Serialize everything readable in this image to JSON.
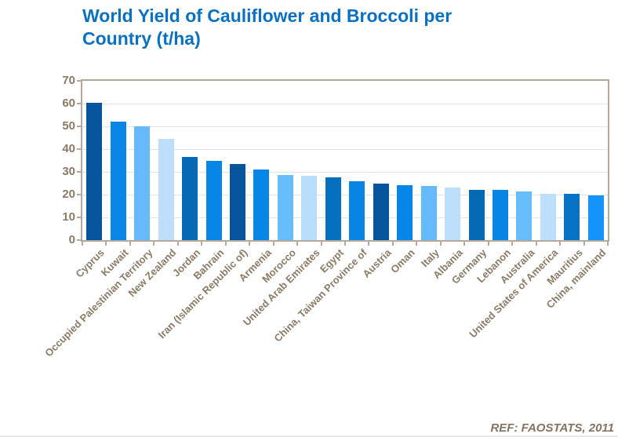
{
  "header": {
    "title_line1": "World Yield of Cauliflower and Broccoli per",
    "title_line2": "Country (t/ha)"
  },
  "colors": {
    "background": "#FFFFFF",
    "title_text": "#0A71C0",
    "axis_frame": "#B5A89C",
    "gridline": "#E7E3DF",
    "axis_text": "#8B7A66",
    "ref_text": "#857262",
    "bottom_rule": "#EAE8E5"
  },
  "chart_data": {
    "type": "bar",
    "title": "World Yield of Cauliflower and Broccoli per Country (t/ha)",
    "annotation": "REF: FAOSTATS, 2011",
    "xlabel": "",
    "ylabel": "",
    "ylim": [
      0,
      70
    ],
    "yticks": [
      0,
      10,
      20,
      30,
      40,
      50,
      60,
      70
    ],
    "grid": true,
    "legend": false,
    "categories": [
      "Cyprus",
      "Kuwait",
      "Occupied Palestinian Territory",
      "New Zealand",
      "Jordan",
      "Bahrain",
      "Iran (Islamic Republic of)",
      "Armenia",
      "Morocco",
      "United Arab Emirates",
      "Egypt",
      "China, Taiwan Province of",
      "Austria",
      "Oman",
      "Italy",
      "Albania",
      "Germany",
      "Lebanon",
      "Australia",
      "United States of America",
      "Mauritius",
      "China, mainland"
    ],
    "values": [
      60.3,
      52,
      50,
      44.4,
      36.4,
      35,
      33.3,
      31,
      28.7,
      28.2,
      27.5,
      26,
      25,
      24.2,
      23.8,
      23.2,
      22.2,
      22,
      21.3,
      20.4,
      20.2,
      19.8
    ],
    "bar_colors": [
      "#05549C",
      "#0986E6",
      "#66B9FA",
      "#BEDFFB",
      "#0569B4",
      "#0886E8",
      "#05549C",
      "#0886E8",
      "#66BEFC",
      "#B8DEFC",
      "#0570BE",
      "#0884E4",
      "#05549C",
      "#0886E8",
      "#66B9FA",
      "#BEDFFB",
      "#0569B4",
      "#0885E4",
      "#66BEFC",
      "#BBDFFC",
      "#0673C6",
      "#1493F8"
    ]
  }
}
